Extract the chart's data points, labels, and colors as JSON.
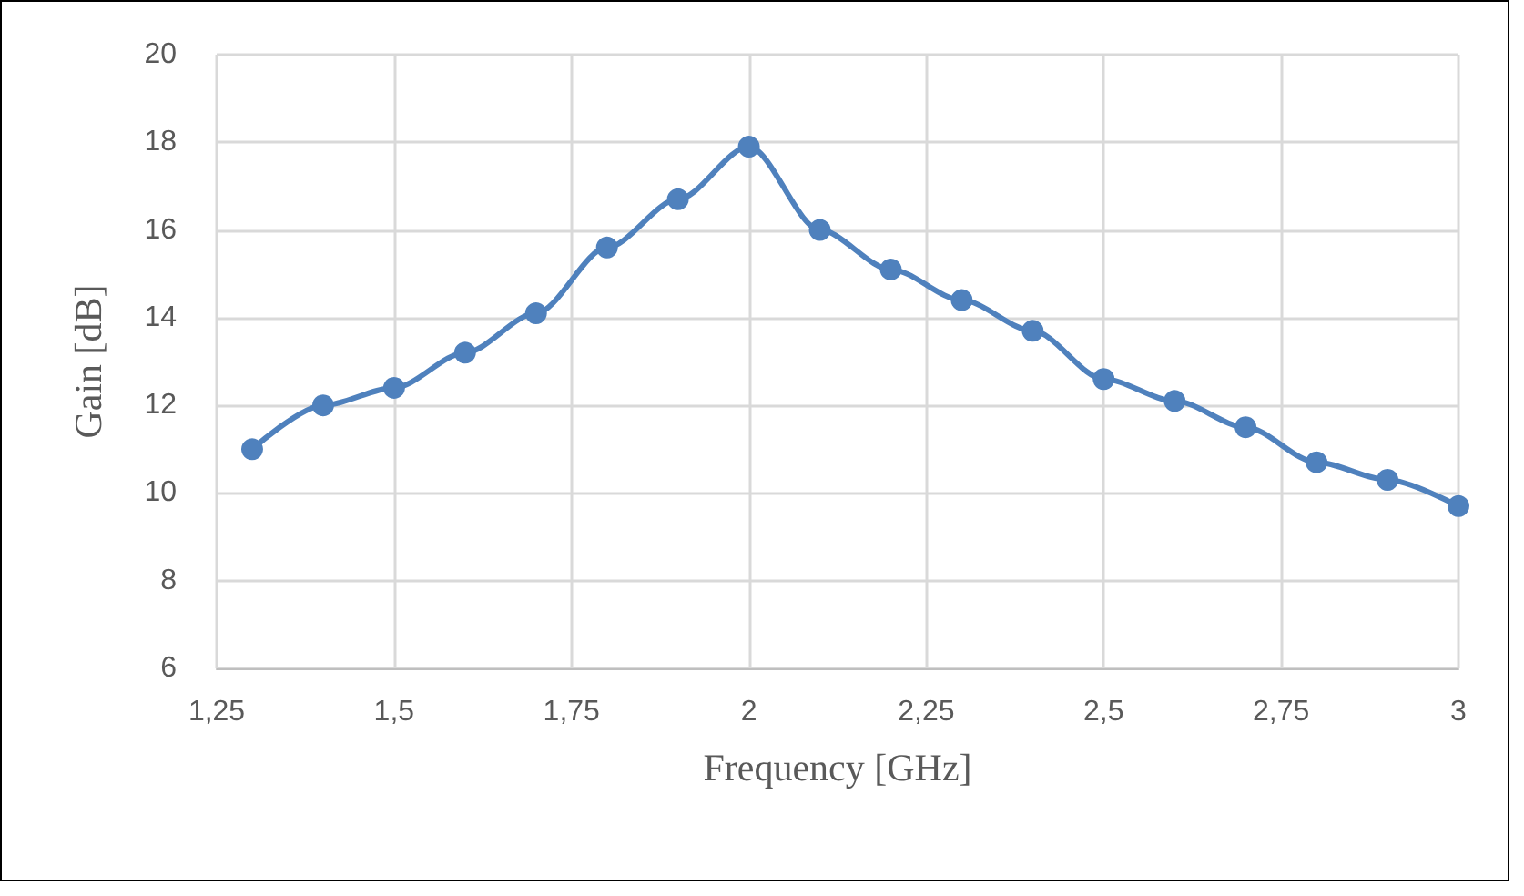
{
  "chart_data": {
    "type": "line",
    "xlabel": "Frequency [GHz]",
    "ylabel": "Gain [dB]",
    "x": [
      1.3,
      1.4,
      1.5,
      1.6,
      1.7,
      1.8,
      1.9,
      2.0,
      2.1,
      2.2,
      2.3,
      2.4,
      2.5,
      2.6,
      2.7,
      2.8,
      2.9,
      3.0
    ],
    "series": [
      {
        "color": "#4f81bd",
        "values": [
          11.0,
          12.0,
          12.4,
          13.2,
          14.1,
          15.6,
          16.7,
          17.9,
          16.0,
          15.1,
          14.4,
          13.7,
          12.6,
          12.1,
          11.5,
          10.7,
          10.3,
          9.7
        ]
      }
    ],
    "xlim": [
      1.25,
      3
    ],
    "xticks": [
      {
        "value": 1.25,
        "label": "1,25"
      },
      {
        "value": 1.5,
        "label": "1,5"
      },
      {
        "value": 1.75,
        "label": "1,75"
      },
      2,
      {
        "value": 2.25,
        "label": "2,25"
      },
      {
        "value": 2.5,
        "label": "2,5"
      },
      {
        "value": 2.75,
        "label": "2,75"
      },
      3
    ],
    "ylim": [
      6,
      20
    ],
    "yticks": [
      6,
      8,
      10,
      12,
      14,
      16,
      18,
      20
    ],
    "grid": true,
    "marker": "circle",
    "line_style": "solid"
  }
}
